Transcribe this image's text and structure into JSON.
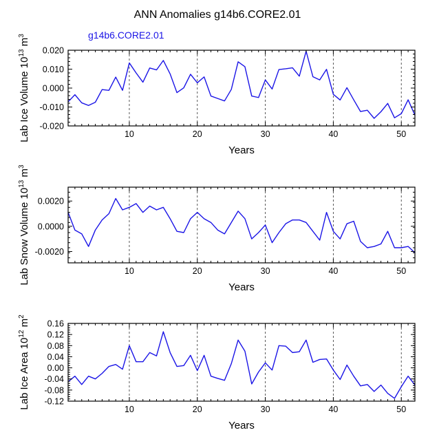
{
  "title": "ANN Anomalies g14b6.CORE2.01",
  "legend_label": "g14b6.CORE2.01",
  "colors": {
    "series": "#1a14e6",
    "axes": "#000000"
  },
  "chart_data": [
    {
      "type": "line",
      "name": "ice-volume",
      "ylabel": "Lab Ice Volume 10",
      "ylabel_exp": "13",
      "ylabel_unit": " m",
      "ylabel_unit_exp": "3",
      "xlabel": "Years",
      "xlim": [
        1,
        52
      ],
      "ylim": [
        -0.02,
        0.02
      ],
      "xticks": [
        10,
        20,
        30,
        40,
        50
      ],
      "yticks": [
        -0.02,
        -0.01,
        0,
        0.01,
        0.02
      ],
      "ytick_labels": [
        "-0.020",
        "-0.010",
        "0.000",
        "0.010",
        "0.020"
      ],
      "x": [
        1,
        2,
        3,
        4,
        5,
        6,
        7,
        8,
        9,
        10,
        11,
        12,
        13,
        14,
        15,
        16,
        17,
        18,
        19,
        20,
        21,
        22,
        23,
        24,
        25,
        26,
        27,
        28,
        29,
        30,
        31,
        32,
        33,
        34,
        35,
        36,
        37,
        38,
        39,
        40,
        41,
        42,
        43,
        44,
        45,
        46,
        47,
        48,
        49,
        50,
        51,
        52
      ],
      "values": [
        -0.0073,
        -0.0035,
        -0.0078,
        -0.0092,
        -0.0075,
        -0.0008,
        -0.0012,
        0.0058,
        -0.0012,
        0.0133,
        0.008,
        0.0031,
        0.0106,
        0.0096,
        0.0146,
        0.0075,
        -0.0024,
        0.0001,
        0.0073,
        0.0028,
        0.0059,
        -0.0042,
        -0.0055,
        -0.0068,
        -0.0007,
        0.0139,
        0.0113,
        -0.0042,
        -0.005,
        0.0043,
        -0.0005,
        0.0098,
        0.0102,
        0.0107,
        0.0063,
        0.0195,
        0.006,
        0.0043,
        0.0099,
        -0.0033,
        -0.0063,
        0.0002,
        -0.0062,
        -0.0124,
        -0.0117,
        -0.016,
        -0.0125,
        -0.0081,
        -0.0157,
        -0.0135,
        -0.0062,
        -0.0143
      ]
    },
    {
      "type": "line",
      "name": "snow-volume",
      "ylabel": "Lab Snow Volume 10",
      "ylabel_exp": "13",
      "ylabel_unit": " m",
      "ylabel_unit_exp": "3",
      "xlabel": "Years",
      "xlim": [
        1,
        52
      ],
      "ylim": [
        -0.0029,
        0.0031
      ],
      "xticks": [
        10,
        20,
        30,
        40,
        50
      ],
      "yticks": [
        -0.002,
        0,
        0.002
      ],
      "ytick_labels": [
        "-0.0020",
        "0.0000",
        "0.0020"
      ],
      "x": [
        1,
        2,
        3,
        4,
        5,
        6,
        7,
        8,
        9,
        10,
        11,
        12,
        13,
        14,
        15,
        16,
        17,
        18,
        19,
        20,
        21,
        22,
        23,
        24,
        25,
        26,
        27,
        28,
        29,
        30,
        31,
        32,
        33,
        34,
        35,
        36,
        37,
        38,
        39,
        40,
        41,
        42,
        43,
        44,
        45,
        46,
        47,
        48,
        49,
        50,
        51,
        52
      ],
      "values": [
        0.0011,
        -0.0003,
        -0.0006,
        -0.0016,
        -0.0003,
        0.0005,
        0.001,
        0.0022,
        0.0013,
        0.0015,
        0.0018,
        0.0011,
        0.0016,
        0.0013,
        0.0015,
        0.0006,
        -0.0004,
        -0.0005,
        0.0006,
        0.0011,
        0.0006,
        0.0003,
        -0.0003,
        -0.0006,
        0.0003,
        0.0012,
        0.0006,
        -0.001,
        -0.0005,
        0.0001,
        -0.0013,
        -0.0005,
        0.0002,
        0.0005,
        0.0005,
        0.0003,
        -0.0004,
        -0.0011,
        0.0011,
        -0.0004,
        -0.001,
        0.0002,
        0.0004,
        -0.0012,
        -0.0017,
        -0.0016,
        -0.0014,
        -0.0004,
        -0.0017,
        -0.0017,
        -0.0016,
        -0.0021
      ]
    },
    {
      "type": "line",
      "name": "ice-area",
      "ylabel": "Lab Ice Area 10",
      "ylabel_exp": "12",
      "ylabel_unit": " m",
      "ylabel_unit_exp": "2",
      "xlabel": "Years",
      "xlim": [
        1,
        52
      ],
      "ylim": [
        -0.12,
        0.16
      ],
      "xticks": [
        10,
        20,
        30,
        40,
        50
      ],
      "yticks": [
        -0.12,
        -0.08,
        -0.04,
        0,
        0.04,
        0.08,
        0.12,
        0.16
      ],
      "ytick_labels": [
        "-0.12",
        "-0.08",
        "-0.04",
        "0.00",
        "0.04",
        "0.08",
        "0.12",
        "0.16"
      ],
      "x": [
        1,
        2,
        3,
        4,
        5,
        6,
        7,
        8,
        9,
        10,
        11,
        12,
        13,
        14,
        15,
        16,
        17,
        18,
        19,
        20,
        21,
        22,
        23,
        24,
        25,
        26,
        27,
        28,
        29,
        30,
        31,
        32,
        33,
        34,
        35,
        36,
        37,
        38,
        39,
        40,
        41,
        42,
        43,
        44,
        45,
        46,
        47,
        48,
        49,
        50,
        51,
        52
      ],
      "values": [
        -0.05,
        -0.03,
        -0.06,
        -0.03,
        -0.04,
        -0.02,
        0.005,
        0.012,
        -0.005,
        0.08,
        0.022,
        0.022,
        0.055,
        0.043,
        0.13,
        0.055,
        0.005,
        0.008,
        0.045,
        -0.01,
        0.045,
        -0.03,
        -0.038,
        -0.045,
        0.015,
        0.1,
        0.06,
        -0.058,
        -0.015,
        0.018,
        -0.008,
        0.08,
        0.078,
        0.055,
        0.058,
        0.1,
        0.02,
        0.03,
        0.032,
        -0.008,
        -0.042,
        0.01,
        -0.03,
        -0.065,
        -0.06,
        -0.085,
        -0.062,
        -0.092,
        -0.11,
        -0.068,
        -0.03,
        -0.062
      ]
    }
  ]
}
